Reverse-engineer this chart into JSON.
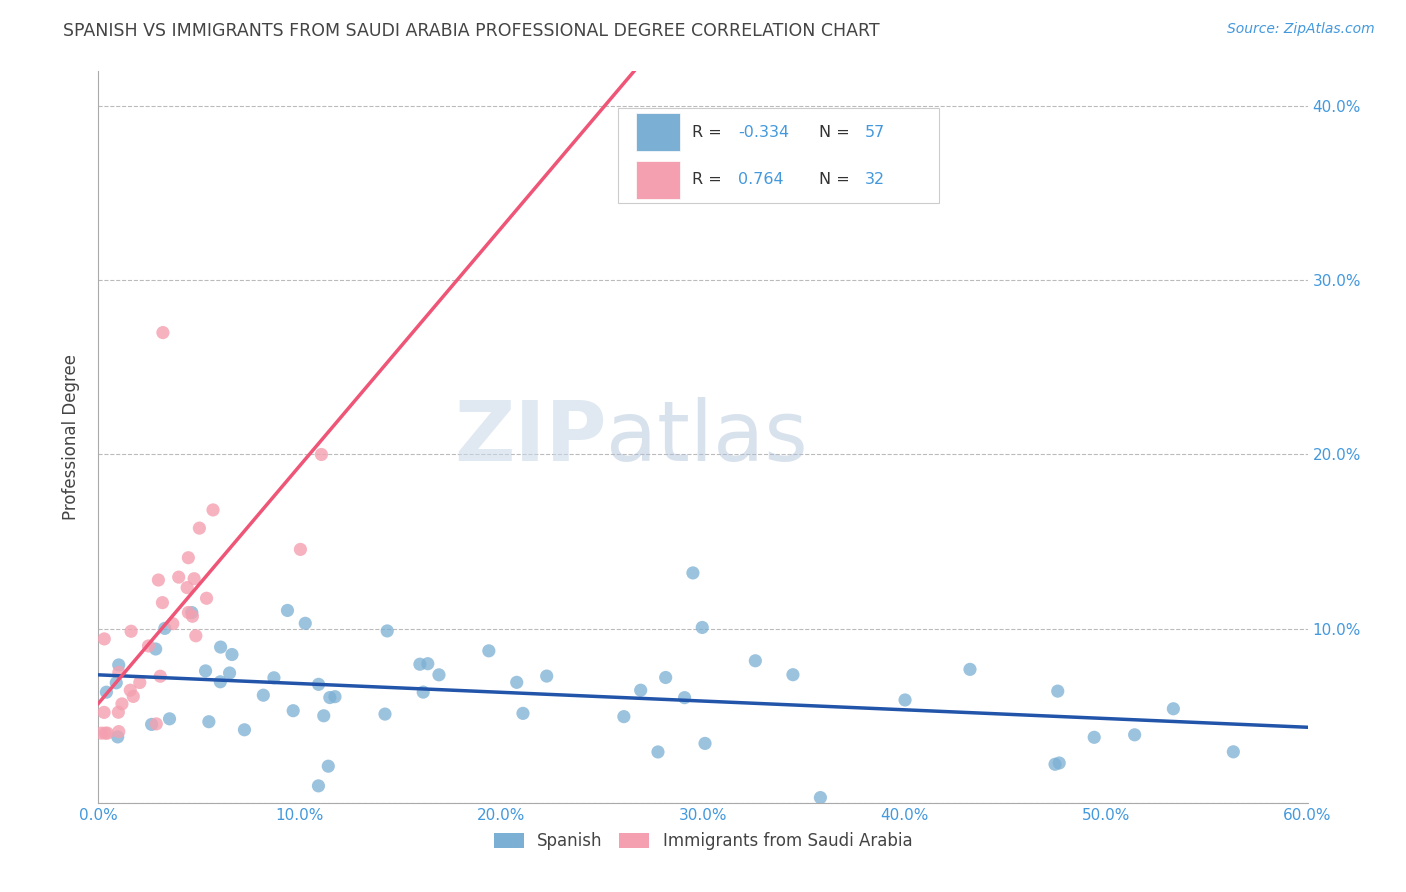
{
  "title": "SPANISH VS IMMIGRANTS FROM SAUDI ARABIA PROFESSIONAL DEGREE CORRELATION CHART",
  "source_text": "Source: ZipAtlas.com",
  "ylabel": "Professional Degree",
  "xlim": [
    0.0,
    0.6
  ],
  "ylim": [
    0.0,
    0.42
  ],
  "xtick_labels": [
    "0.0%",
    "10.0%",
    "20.0%",
    "30.0%",
    "40.0%",
    "50.0%",
    "60.0%"
  ],
  "xtick_vals": [
    0.0,
    0.1,
    0.2,
    0.3,
    0.4,
    0.5,
    0.6
  ],
  "ytick_labels": [
    "",
    "10.0%",
    "20.0%",
    "30.0%",
    "40.0%"
  ],
  "ytick_vals": [
    0.0,
    0.1,
    0.2,
    0.3,
    0.4
  ],
  "blue_color": "#7BAFD4",
  "pink_color": "#F4A0B0",
  "blue_line_color": "#2255AA",
  "pink_line_color": "#EE5577",
  "watermark_zip": "ZIP",
  "watermark_atlas": "atlas",
  "background_color": "#FFFFFF",
  "grid_color": "#BBBBBB",
  "title_color": "#444444",
  "axis_label_color": "#444444",
  "tick_label_color": "#4499DD",
  "legend_blue_r": "-0.334",
  "legend_blue_n": "57",
  "legend_pink_r": "0.764",
  "legend_pink_n": "32"
}
